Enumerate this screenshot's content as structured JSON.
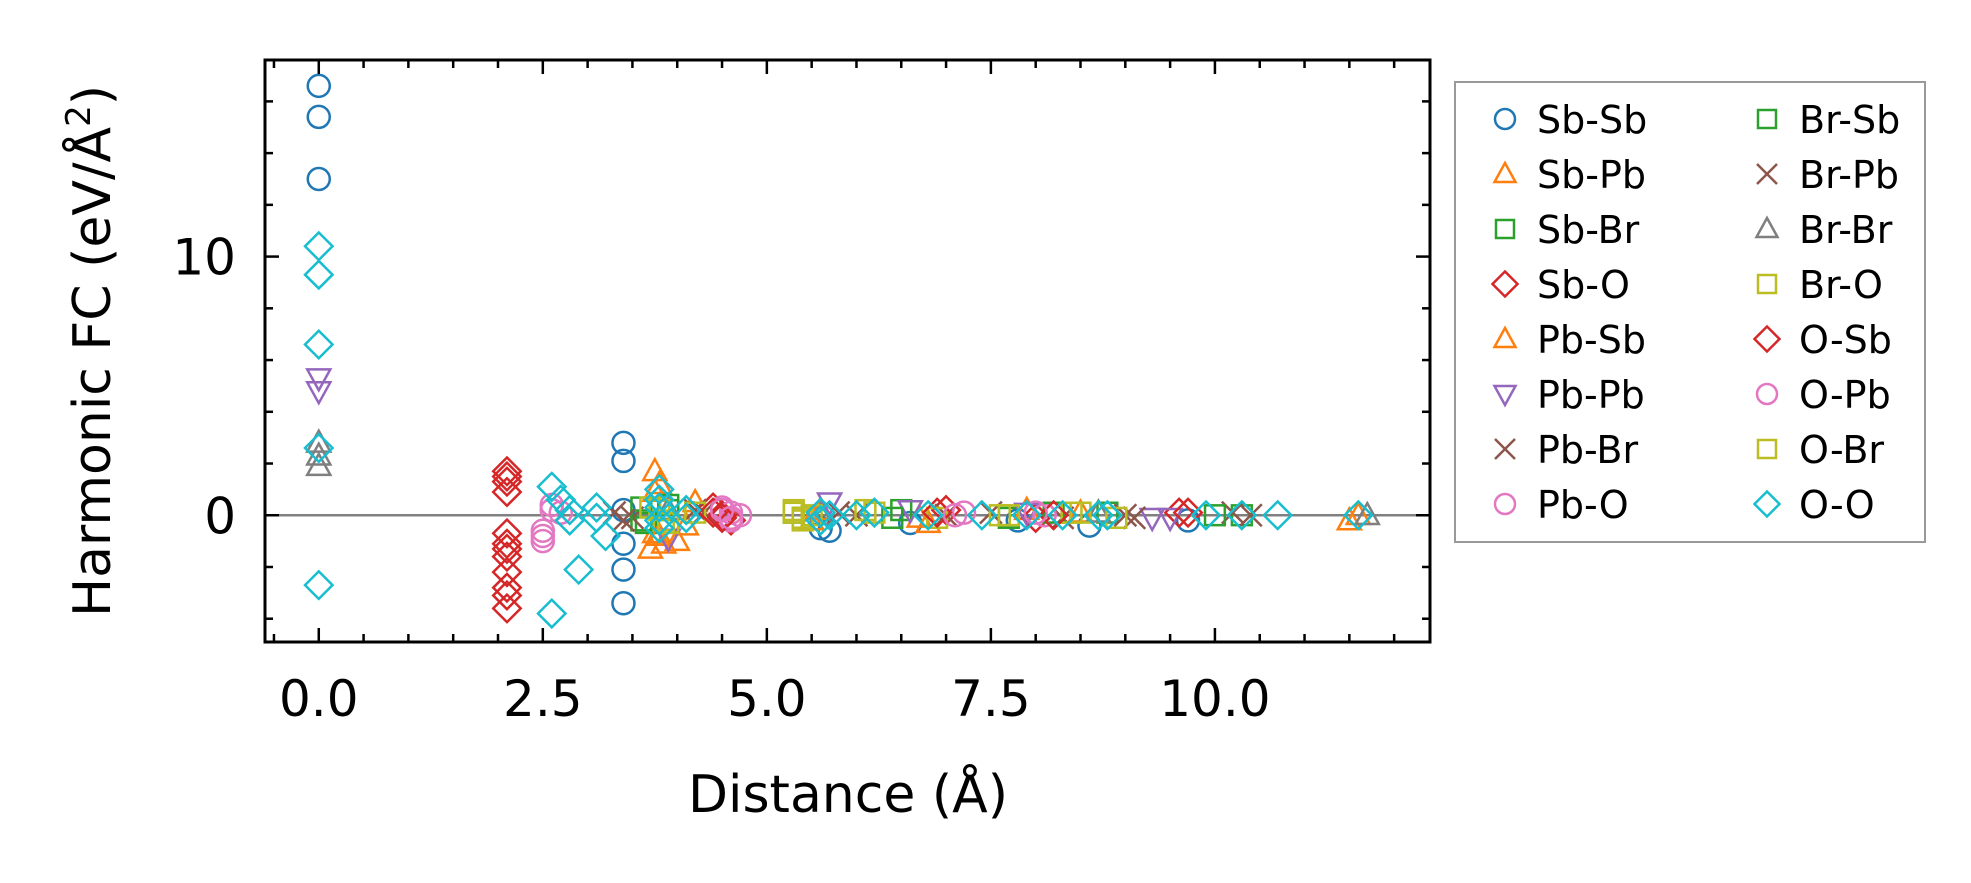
{
  "chart_data": {
    "type": "scatter",
    "title": "",
    "xlabel": "Distance (Å)",
    "ylabel_main": "Harmonic FC (eV/Å",
    "ylabel_sup": "2",
    "ylabel_close": ")",
    "xlim": [
      -0.6,
      12.4
    ],
    "ylim": [
      -4.9,
      17.6
    ],
    "xticks": [
      0.0,
      2.5,
      5.0,
      7.5,
      10.0
    ],
    "xtick_labels": [
      "0.0",
      "2.5",
      "5.0",
      "7.5",
      "10.0"
    ],
    "yticks": [
      0,
      10
    ],
    "ytick_labels": [
      "0",
      "10"
    ],
    "x_minor_step": 0.5,
    "y_minor_step": 2,
    "zero_line": true,
    "legend_position": "outside-right",
    "series": [
      {
        "name": "Sb-Sb",
        "marker": "circle",
        "color": "#1f77b4",
        "points": [
          [
            0,
            16.6
          ],
          [
            0,
            15.4
          ],
          [
            0,
            13.0
          ],
          [
            3.4,
            2.8
          ],
          [
            3.4,
            2.1
          ],
          [
            3.4,
            -1.1
          ],
          [
            3.4,
            -2.1
          ],
          [
            3.4,
            -3.4
          ],
          [
            3.4,
            0.2
          ],
          [
            5.6,
            -0.5
          ],
          [
            5.7,
            -0.6
          ],
          [
            6.6,
            -0.3
          ],
          [
            7.8,
            -0.2
          ],
          [
            8.6,
            -0.4
          ],
          [
            9.7,
            -0.2
          ]
        ]
      },
      {
        "name": "Sb-Pb",
        "marker": "triangle-up",
        "color": "#ff7f0e",
        "points": [
          [
            3.75,
            1.7
          ],
          [
            3.8,
            1.2
          ],
          [
            3.75,
            -0.7
          ],
          [
            3.7,
            -1.3
          ],
          [
            3.85,
            -1.1
          ],
          [
            4.0,
            -1.0
          ],
          [
            4.2,
            0.5
          ],
          [
            5.5,
            -0.2
          ],
          [
            6.8,
            -0.3
          ],
          [
            7.9,
            0.2
          ],
          [
            11.5,
            -0.2
          ]
        ]
      },
      {
        "name": "Sb-Br",
        "marker": "square",
        "color": "#2ca02c",
        "points": [
          [
            3.6,
            0.3
          ],
          [
            3.65,
            -0.3
          ],
          [
            3.9,
            0.2
          ],
          [
            5.4,
            -0.1
          ],
          [
            6.5,
            0.2
          ],
          [
            7.7,
            -0.1
          ],
          [
            8.8,
            0.1
          ],
          [
            10.3,
            0.0
          ]
        ]
      },
      {
        "name": "Sb-O",
        "marker": "diamond",
        "color": "#d62728",
        "points": [
          [
            2.1,
            1.7
          ],
          [
            2.1,
            1.3
          ],
          [
            2.1,
            0.9
          ],
          [
            2.1,
            -0.7
          ],
          [
            2.1,
            -1.1
          ],
          [
            2.1,
            -1.6
          ],
          [
            2.1,
            -2.2
          ],
          [
            2.1,
            -3.1
          ],
          [
            2.1,
            -3.6
          ],
          [
            4.4,
            0.3
          ],
          [
            4.5,
            0.0
          ],
          [
            4.6,
            -0.2
          ],
          [
            7.0,
            0.2
          ],
          [
            8.0,
            -0.1
          ],
          [
            9.6,
            0.1
          ]
        ]
      },
      {
        "name": "Pb-Sb",
        "marker": "triangle-up",
        "color": "#ff7f0e",
        "points": [
          [
            3.75,
            0.9
          ],
          [
            3.8,
            -0.8
          ],
          [
            4.1,
            -0.4
          ],
          [
            5.6,
            0.2
          ],
          [
            6.7,
            -0.1
          ],
          [
            8.5,
            0.1
          ],
          [
            11.6,
            0.0
          ]
        ]
      },
      {
        "name": "Pb-Pb",
        "marker": "triangle-down",
        "color": "#9467bd",
        "points": [
          [
            0,
            5.3
          ],
          [
            0,
            4.8
          ],
          [
            3.9,
            -0.9
          ],
          [
            5.7,
            0.5
          ],
          [
            6.6,
            0.2
          ],
          [
            7.9,
            0.1
          ],
          [
            9.3,
            -0.1
          ],
          [
            9.5,
            -0.1
          ]
        ]
      },
      {
        "name": "Pb-Br",
        "marker": "x",
        "color": "#8c564b",
        "points": [
          [
            3.3,
            0.1
          ],
          [
            3.5,
            -0.1
          ],
          [
            4.2,
            0.2
          ],
          [
            5.8,
            0.1
          ],
          [
            7.0,
            0.0
          ],
          [
            8.3,
            -0.1
          ],
          [
            9.0,
            0.0
          ],
          [
            10.2,
            0.1
          ]
        ]
      },
      {
        "name": "Pb-O",
        "marker": "circle",
        "color": "#e377c2",
        "points": [
          [
            2.5,
            -1.0
          ],
          [
            2.5,
            -0.6
          ],
          [
            2.6,
            0.4
          ],
          [
            2.7,
            0.1
          ],
          [
            4.5,
            0.3
          ],
          [
            4.6,
            0.1
          ],
          [
            4.6,
            -0.2
          ],
          [
            4.7,
            0.0
          ],
          [
            7.2,
            0.1
          ],
          [
            8.1,
            0.0
          ]
        ]
      },
      {
        "name": "Br-Sb",
        "marker": "square",
        "color": "#2ca02c",
        "points": [
          [
            3.6,
            -0.2
          ],
          [
            3.9,
            0.4
          ],
          [
            5.3,
            0.1
          ],
          [
            6.4,
            -0.1
          ],
          [
            8.2,
            0.1
          ],
          [
            10.0,
            0.0
          ]
        ]
      },
      {
        "name": "Br-Pb",
        "marker": "x",
        "color": "#8c564b",
        "points": [
          [
            3.4,
            -0.2
          ],
          [
            4.3,
            0.1
          ],
          [
            6.0,
            0.0
          ],
          [
            7.5,
            0.1
          ],
          [
            9.1,
            -0.1
          ],
          [
            10.4,
            0.0
          ]
        ]
      },
      {
        "name": "Br-Br",
        "marker": "triangle-up",
        "color": "#7f7f7f",
        "points": [
          [
            0,
            2.8
          ],
          [
            0,
            2.3
          ],
          [
            0,
            1.9
          ],
          [
            3.9,
            0.2
          ],
          [
            5.6,
            0.0
          ],
          [
            8.7,
            0.1
          ],
          [
            11.7,
            0.0
          ]
        ]
      },
      {
        "name": "Br-O",
        "marker": "square",
        "color": "#bcbd22",
        "points": [
          [
            3.7,
            0.3
          ],
          [
            3.9,
            -0.3
          ],
          [
            4.2,
            0.1
          ],
          [
            5.3,
            0.2
          ],
          [
            5.4,
            -0.2
          ],
          [
            5.5,
            0.0
          ],
          [
            6.1,
            0.2
          ],
          [
            6.9,
            -0.1
          ],
          [
            7.6,
            0.0
          ],
          [
            8.4,
            0.1
          ],
          [
            8.9,
            -0.1
          ]
        ]
      },
      {
        "name": "O-Sb",
        "marker": "diamond",
        "color": "#d62728",
        "points": [
          [
            2.1,
            1.5
          ],
          [
            2.1,
            -1.3
          ],
          [
            2.1,
            -2.8
          ],
          [
            4.4,
            0.1
          ],
          [
            4.5,
            -0.1
          ],
          [
            6.9,
            0.1
          ],
          [
            8.2,
            0.0
          ],
          [
            9.7,
            0.1
          ]
        ]
      },
      {
        "name": "O-Pb",
        "marker": "circle",
        "color": "#e377c2",
        "points": [
          [
            2.5,
            -0.8
          ],
          [
            2.6,
            0.2
          ],
          [
            4.5,
            0.2
          ],
          [
            4.6,
            -0.1
          ],
          [
            7.1,
            0.0
          ],
          [
            8.0,
            0.1
          ]
        ]
      },
      {
        "name": "O-Br",
        "marker": "square",
        "color": "#bcbd22",
        "points": [
          [
            3.8,
            0.2
          ],
          [
            3.85,
            -0.2
          ],
          [
            5.3,
            0.1
          ],
          [
            5.4,
            -0.1
          ],
          [
            6.2,
            0.1
          ],
          [
            7.7,
            0.0
          ],
          [
            8.5,
            0.1
          ]
        ]
      },
      {
        "name": "O-O",
        "marker": "diamond",
        "color": "#17becf",
        "points": [
          [
            0,
            10.4
          ],
          [
            0,
            9.3
          ],
          [
            0,
            6.6
          ],
          [
            0,
            2.6
          ],
          [
            0,
            -2.7
          ],
          [
            2.6,
            1.1
          ],
          [
            2.6,
            -3.8
          ],
          [
            2.7,
            0.6
          ],
          [
            2.8,
            0.2
          ],
          [
            2.8,
            -0.2
          ],
          [
            2.9,
            -2.1
          ],
          [
            3.1,
            0.3
          ],
          [
            3.1,
            -0.1
          ],
          [
            3.2,
            -0.8
          ],
          [
            3.8,
            1.0
          ],
          [
            3.8,
            0.6
          ],
          [
            3.8,
            0.3
          ],
          [
            3.8,
            -0.2
          ],
          [
            3.8,
            -0.5
          ],
          [
            4.1,
            0.2
          ],
          [
            4.1,
            -0.1
          ],
          [
            5.6,
            0.1
          ],
          [
            5.6,
            -0.2
          ],
          [
            5.7,
            0.0
          ],
          [
            6.0,
            0.0
          ],
          [
            6.2,
            0.1
          ],
          [
            6.8,
            0.0
          ],
          [
            7.4,
            0.0
          ],
          [
            7.9,
            0.0
          ],
          [
            8.3,
            0.0
          ],
          [
            8.7,
            0.0
          ],
          [
            8.8,
            0.0
          ],
          [
            9.9,
            0.0
          ],
          [
            10.3,
            0.0
          ],
          [
            10.7,
            0.0
          ],
          [
            11.6,
            0.0
          ]
        ]
      }
    ]
  }
}
